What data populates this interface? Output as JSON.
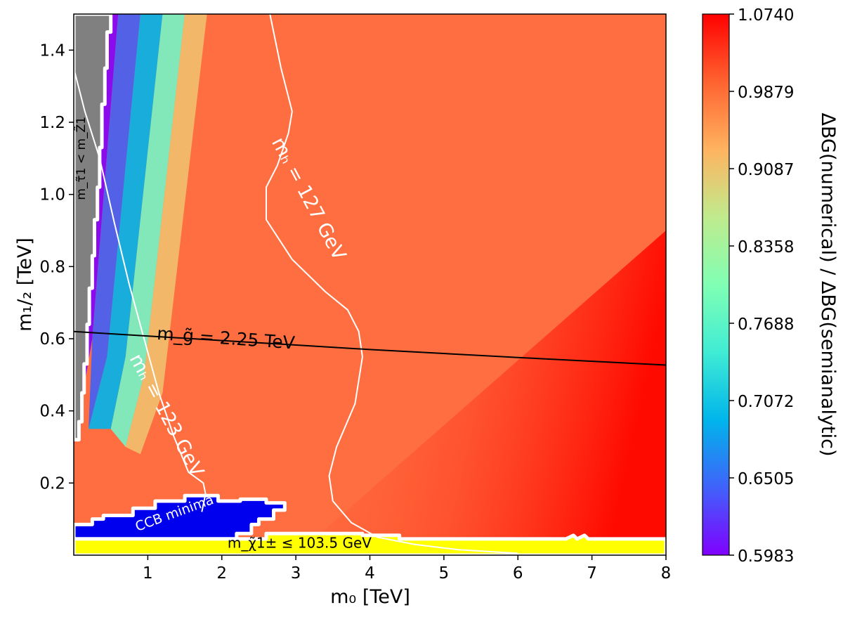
{
  "chart_data": {
    "type": "heatmap",
    "title": "",
    "xlabel": "m₀ [TeV]",
    "ylabel": "m₁/₂ [TeV]",
    "colorbar_label": "ΔBG(numerical) / ΔBG(semianalytic)",
    "xlim": [
      0,
      8
    ],
    "ylim": [
      0,
      1.5
    ],
    "x_ticks": [
      1,
      2,
      3,
      4,
      5,
      6,
      7,
      8
    ],
    "y_ticks": [
      0.2,
      0.4,
      0.6,
      0.8,
      1.0,
      1.2,
      1.4
    ],
    "x_tick_labels": [
      "1",
      "2",
      "3",
      "4",
      "5",
      "6",
      "7",
      "8"
    ],
    "y_tick_labels": [
      "0.2",
      "0.4",
      "0.6",
      "0.8",
      "1.0",
      "1.2",
      "1.4"
    ],
    "colorbar": {
      "min": 0.5983,
      "max": 1.074,
      "ticks": [
        1.074,
        0.9879,
        0.9087,
        0.8358,
        0.7688,
        0.7072,
        0.6505,
        0.5983
      ],
      "tick_labels": [
        "1.0740",
        "0.9879",
        "0.9087",
        "0.8358",
        "0.7688",
        "0.7072",
        "0.6505",
        "0.5983"
      ],
      "colormap": "rainbow"
    },
    "regions": [
      {
        "name": "excluded-stau",
        "label": "m_τ̃1 < m_Z̃1",
        "color": "#808080",
        "boundary": [
          [
            0,
            1.5
          ],
          [
            0.5,
            1.5
          ],
          [
            0.5,
            1.45
          ],
          [
            0.45,
            1.45
          ],
          [
            0.45,
            1.35
          ],
          [
            0.42,
            1.35
          ],
          [
            0.42,
            1.25
          ],
          [
            0.38,
            1.25
          ],
          [
            0.38,
            1.13
          ],
          [
            0.35,
            1.13
          ],
          [
            0.35,
            1.02
          ],
          [
            0.32,
            1.02
          ],
          [
            0.32,
            0.93
          ],
          [
            0.28,
            0.93
          ],
          [
            0.28,
            0.83
          ],
          [
            0.25,
            0.83
          ],
          [
            0.25,
            0.74
          ],
          [
            0.21,
            0.74
          ],
          [
            0.21,
            0.64
          ],
          [
            0.18,
            0.64
          ],
          [
            0.18,
            0.53
          ],
          [
            0.14,
            0.53
          ],
          [
            0.14,
            0.45
          ],
          [
            0.11,
            0.45
          ],
          [
            0.11,
            0.37
          ],
          [
            0.07,
            0.37
          ],
          [
            0.07,
            0.32
          ],
          [
            0,
            0.32
          ]
        ]
      },
      {
        "name": "ccb-minima",
        "label": "CCB minima",
        "color": "#0000ee",
        "boundary": [
          [
            0,
            0.085
          ],
          [
            0.25,
            0.085
          ],
          [
            0.25,
            0.1
          ],
          [
            0.4,
            0.1
          ],
          [
            0.4,
            0.11
          ],
          [
            0.8,
            0.11
          ],
          [
            0.8,
            0.13
          ],
          [
            1.1,
            0.13
          ],
          [
            1.1,
            0.15
          ],
          [
            1.5,
            0.15
          ],
          [
            1.5,
            0.165
          ],
          [
            1.95,
            0.165
          ],
          [
            1.95,
            0.15
          ],
          [
            2.25,
            0.15
          ],
          [
            2.25,
            0.155
          ],
          [
            2.6,
            0.155
          ],
          [
            2.6,
            0.145
          ],
          [
            2.85,
            0.145
          ],
          [
            2.85,
            0.125
          ],
          [
            2.7,
            0.125
          ],
          [
            2.7,
            0.1
          ],
          [
            2.5,
            0.1
          ],
          [
            2.5,
            0.085
          ],
          [
            2.4,
            0.085
          ],
          [
            2.4,
            0.06
          ],
          [
            2.2,
            0.06
          ],
          [
            2.2,
            0.045
          ],
          [
            0,
            0.045
          ]
        ]
      },
      {
        "name": "chargino-limit",
        "label": "m_χ̃1± ≤ 103.5 GeV",
        "color": "#ffff00",
        "boundary": [
          [
            0,
            0
          ],
          [
            8,
            0
          ],
          [
            8,
            0.045
          ],
          [
            6.95,
            0.045
          ],
          [
            6.9,
            0.055
          ],
          [
            6.8,
            0.045
          ],
          [
            6.75,
            0.055
          ],
          [
            6.65,
            0.045
          ],
          [
            4.4,
            0.045
          ],
          [
            4.4,
            0.055
          ],
          [
            3.9,
            0.055
          ],
          [
            3.9,
            0.06
          ],
          [
            2.6,
            0.06
          ],
          [
            2.6,
            0.045
          ],
          [
            0,
            0.045
          ]
        ]
      }
    ],
    "contours": [
      {
        "name": "mh-123",
        "label": "mₕ = 123 GeV",
        "color": "#ffffff",
        "points": [
          [
            0,
            1.35
          ],
          [
            0.15,
            1.23
          ],
          [
            0.35,
            1.1
          ],
          [
            0.55,
            0.92
          ],
          [
            0.75,
            0.75
          ],
          [
            0.95,
            0.6
          ],
          [
            1.15,
            0.45
          ],
          [
            1.35,
            0.33
          ],
          [
            1.55,
            0.23
          ],
          [
            1.75,
            0.2
          ],
          [
            1.78,
            0.17
          ],
          [
            1.73,
            0.12
          ]
        ]
      },
      {
        "name": "mh-127",
        "label": "mₕ = 127 GeV",
        "color": "#ffffff",
        "points": [
          [
            2.65,
            1.5
          ],
          [
            2.8,
            1.35
          ],
          [
            2.95,
            1.23
          ],
          [
            2.9,
            1.17
          ],
          [
            2.75,
            1.08
          ],
          [
            2.6,
            1.02
          ],
          [
            2.6,
            0.93
          ],
          [
            2.95,
            0.82
          ],
          [
            3.4,
            0.73
          ],
          [
            3.7,
            0.68
          ],
          [
            3.85,
            0.62
          ],
          [
            3.9,
            0.55
          ],
          [
            3.8,
            0.42
          ],
          [
            3.55,
            0.3
          ],
          [
            3.45,
            0.22
          ],
          [
            3.5,
            0.15
          ],
          [
            3.75,
            0.09
          ],
          [
            4.1,
            0.05
          ],
          [
            4.6,
            0.03
          ],
          [
            5.2,
            0.015
          ],
          [
            6,
            0.005
          ]
        ]
      },
      {
        "name": "gluino-2.25",
        "label": "m_g̃ = 2.25 TeV",
        "color": "#000000",
        "points": [
          [
            0,
            0.62
          ],
          [
            2,
            0.595
          ],
          [
            4,
            0.57
          ],
          [
            6,
            0.548
          ],
          [
            8,
            0.527
          ]
        ]
      }
    ]
  }
}
